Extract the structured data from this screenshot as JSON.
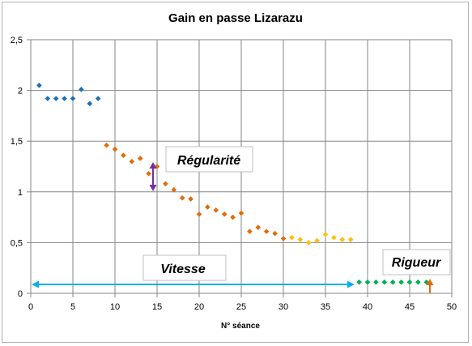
{
  "chart_data": {
    "type": "scatter",
    "title": "Gain en passe Lizarazu",
    "xlabel": "N° séance",
    "ylabel": "",
    "xlim": [
      0,
      50
    ],
    "ylim": [
      0,
      2.5
    ],
    "x_ticks": [
      "0",
      "5",
      "10",
      "15",
      "20",
      "25",
      "30",
      "35",
      "40",
      "45",
      "50"
    ],
    "y_ticks": [
      "0",
      "0,5",
      "1",
      "1,5",
      "2",
      "2,5"
    ],
    "grid": true,
    "series": [
      {
        "color": "#1f6fb5",
        "points": [
          [
            1,
            2.05
          ],
          [
            2,
            1.92
          ],
          [
            3,
            1.92
          ],
          [
            4,
            1.92
          ],
          [
            5,
            1.92
          ],
          [
            6,
            2.01
          ],
          [
            7,
            1.87
          ],
          [
            8,
            1.92
          ]
        ]
      },
      {
        "color": "#e26b0a",
        "points": [
          [
            9,
            1.46
          ],
          [
            10,
            1.42
          ],
          [
            11,
            1.36
          ],
          [
            12,
            1.3
          ],
          [
            13,
            1.33
          ],
          [
            14,
            1.18
          ],
          [
            15,
            1.25
          ],
          [
            16,
            1.08
          ],
          [
            17,
            1.02
          ],
          [
            18,
            0.94
          ],
          [
            19,
            0.93
          ],
          [
            20,
            0.78
          ],
          [
            21,
            0.85
          ],
          [
            22,
            0.82
          ],
          [
            23,
            0.78
          ],
          [
            24,
            0.75
          ],
          [
            25,
            0.79
          ],
          [
            26,
            0.61
          ],
          [
            27,
            0.65
          ],
          [
            28,
            0.61
          ],
          [
            29,
            0.59
          ],
          [
            30,
            0.54
          ]
        ]
      },
      {
        "color": "#ffc000",
        "points": [
          [
            31,
            0.55
          ],
          [
            32,
            0.53
          ],
          [
            33,
            0.5
          ],
          [
            34,
            0.52
          ],
          [
            35,
            0.58
          ],
          [
            36,
            0.55
          ],
          [
            37,
            0.53
          ],
          [
            38,
            0.53
          ]
        ]
      },
      {
        "color": "#00b050",
        "points": [
          [
            39,
            0.11
          ],
          [
            40,
            0.11
          ],
          [
            41,
            0.11
          ],
          [
            42,
            0.11
          ],
          [
            43,
            0.11
          ],
          [
            44,
            0.11
          ],
          [
            45,
            0.11
          ],
          [
            46,
            0.11
          ],
          [
            47,
            0.11
          ]
        ]
      }
    ],
    "annotations": [
      {
        "text": "Régularité",
        "color": "#7030a0"
      },
      {
        "text": "Vitesse",
        "color": "#00b0f0"
      },
      {
        "text": "Rigueur",
        "color": "#e26b0a"
      }
    ]
  }
}
